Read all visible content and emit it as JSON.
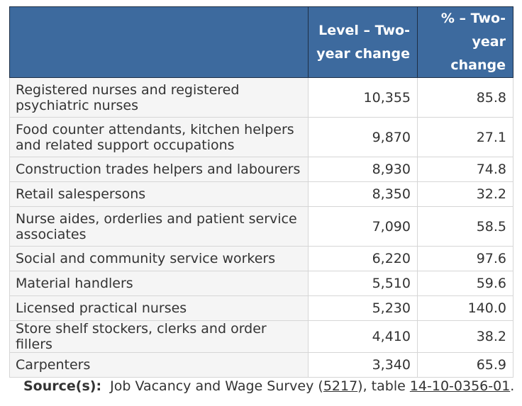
{
  "table": {
    "headers": {
      "occupation": "",
      "level": "Level – Two-year change",
      "percent": "% – Two-year change"
    },
    "rows": [
      {
        "occupation": "Registered nurses and registered psychiatric nurses",
        "level": "10,355",
        "percent": "85.8"
      },
      {
        "occupation": "Food counter attendants, kitchen helpers and related support occupations",
        "level": "9,870",
        "percent": "27.1"
      },
      {
        "occupation": "Construction trades helpers and labourers",
        "level": "8,930",
        "percent": "74.8"
      },
      {
        "occupation": "Retail salespersons",
        "level": "8,350",
        "percent": "32.2"
      },
      {
        "occupation": "Nurse aides, orderlies and patient service associates",
        "level": "7,090",
        "percent": "58.5"
      },
      {
        "occupation": "Social and community service workers",
        "level": "6,220",
        "percent": "97.6"
      },
      {
        "occupation": "Material handlers",
        "level": "5,510",
        "percent": "59.6"
      },
      {
        "occupation": "Licensed practical nurses",
        "level": "5,230",
        "percent": "140.0"
      },
      {
        "occupation": "Store shelf stockers, clerks and order fillers",
        "level": "4,410",
        "percent": "38.2"
      },
      {
        "occupation": "Carpenters",
        "level": "3,340",
        "percent": "65.9"
      }
    ]
  },
  "source": {
    "label": "Source(s):",
    "text_before": "Job Vacancy and Wage Survey (",
    "survey_link": "5217",
    "text_middle": "), table ",
    "table_link": "14-10-0356-01",
    "text_after": "."
  },
  "colors": {
    "header_bg": "#3d6a9e",
    "header_text": "#ffffff",
    "occupation_cell_bg": "#f5f5f5",
    "body_text": "#333333"
  }
}
